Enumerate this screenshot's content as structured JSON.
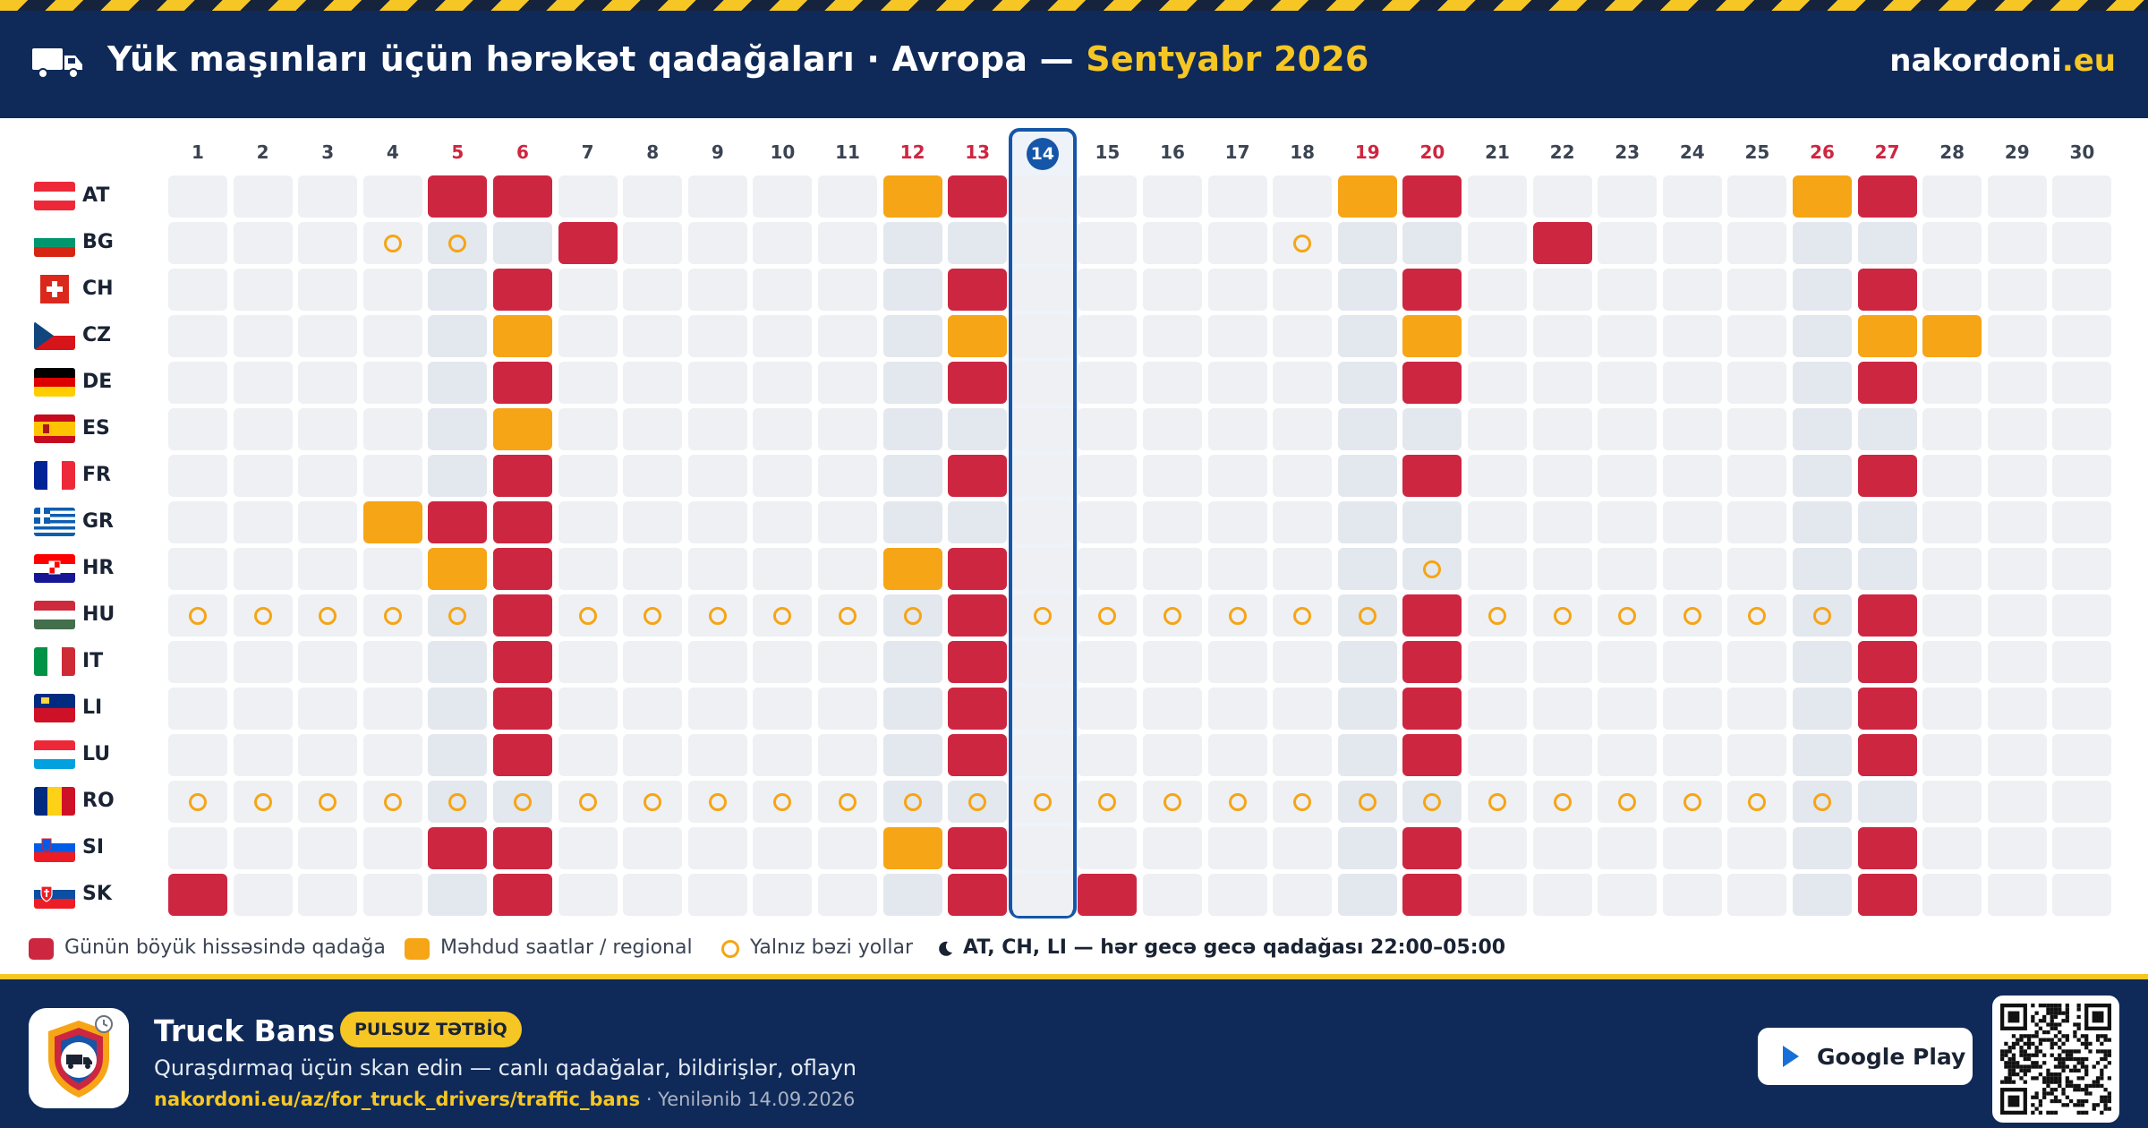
{
  "header": {
    "title": "Yük maşınları üçün hərəkət qadağaları · Avropa —",
    "month": "Sentyabr 2026",
    "brand_main": "nakordoni",
    "brand_tld": ".eu",
    "icon": "truck-icon"
  },
  "calendar": {
    "days_in_month": 30,
    "today": 14,
    "weekend_days": [
      5,
      6,
      12,
      13,
      19,
      20,
      26,
      27
    ],
    "days": [
      "1",
      "2",
      "3",
      "4",
      "5",
      "6",
      "7",
      "8",
      "9",
      "10",
      "11",
      "12",
      "13",
      "14",
      "15",
      "16",
      "17",
      "18",
      "19",
      "20",
      "21",
      "22",
      "23",
      "24",
      "25",
      "26",
      "27",
      "28",
      "29",
      "30"
    ],
    "countries": [
      {
        "code": "AT",
        "full": [
          5,
          6,
          13,
          20,
          27
        ],
        "partial": [
          12,
          19,
          26
        ],
        "roads": []
      },
      {
        "code": "BG",
        "full": [
          7,
          22
        ],
        "partial": [],
        "roads": [
          4,
          5,
          18
        ]
      },
      {
        "code": "CH",
        "full": [
          6,
          13,
          20,
          27
        ],
        "partial": [],
        "roads": []
      },
      {
        "code": "CZ",
        "full": [],
        "partial": [
          6,
          13,
          20,
          27,
          28
        ],
        "roads": []
      },
      {
        "code": "DE",
        "full": [
          6,
          13,
          20,
          27
        ],
        "partial": [],
        "roads": []
      },
      {
        "code": "ES",
        "full": [],
        "partial": [
          6
        ],
        "roads": []
      },
      {
        "code": "FR",
        "full": [
          6,
          13,
          20,
          27
        ],
        "partial": [],
        "roads": []
      },
      {
        "code": "GR",
        "full": [
          5,
          6
        ],
        "partial": [
          4
        ],
        "roads": []
      },
      {
        "code": "HR",
        "full": [
          6,
          13
        ],
        "partial": [
          5,
          12
        ],
        "roads": [
          20
        ]
      },
      {
        "code": "HU",
        "full": [
          6,
          13,
          20,
          27
        ],
        "partial": [],
        "roads": [
          1,
          2,
          3,
          4,
          5,
          7,
          8,
          9,
          10,
          11,
          12,
          14,
          15,
          16,
          17,
          18,
          19,
          21,
          22,
          23,
          24,
          25,
          26
        ]
      },
      {
        "code": "IT",
        "full": [
          6,
          13,
          20,
          27
        ],
        "partial": [],
        "roads": []
      },
      {
        "code": "LI",
        "full": [
          6,
          13,
          20,
          27
        ],
        "partial": [],
        "roads": []
      },
      {
        "code": "LU",
        "full": [
          6,
          13,
          20,
          27
        ],
        "partial": [],
        "roads": []
      },
      {
        "code": "RO",
        "full": [],
        "partial": [],
        "roads": [
          1,
          2,
          3,
          4,
          5,
          6,
          7,
          8,
          9,
          10,
          11,
          12,
          13,
          14,
          15,
          16,
          17,
          18,
          19,
          20,
          21,
          22,
          23,
          24,
          25,
          26
        ]
      },
      {
        "code": "SI",
        "full": [
          5,
          6,
          13,
          20,
          27
        ],
        "partial": [
          12
        ],
        "roads": []
      },
      {
        "code": "SK",
        "full": [
          1,
          6,
          13,
          15,
          20,
          27
        ],
        "partial": [],
        "roads": []
      }
    ]
  },
  "colors": {
    "full": "#cd2641",
    "partial": "#f6a516",
    "road_ring": "#f5a516",
    "today": "#1556a8",
    "header_bg": "#0f2a59",
    "accent_yellow": "#f6c624"
  },
  "legend": {
    "full": "Günün böyük hissəsində qadağa",
    "partial": "Məhdud saatlar / regional",
    "roads": "Yalnız bəzi yollar",
    "night_icon": "moon-icon",
    "night": "AT, CH, LI — hər gecə gecə qadağası 22:00–05:00"
  },
  "footer": {
    "app_name": "Truck Bans",
    "badge": "PULSUZ TƏTBİQ",
    "description": "Quraşdırmaq üçün skan edin — canlı qadağalar, bildirişlər, oflayn",
    "url": "nakordoni.eu/az/for_truck_drivers/traffic_bans",
    "updated": " · Yenilənib 14.09.2026",
    "store_button": "Google Play",
    "store_icon": "google-play-icon",
    "app_icon": "truck-shield-icon",
    "qr_icon": "qr-code-icon"
  }
}
